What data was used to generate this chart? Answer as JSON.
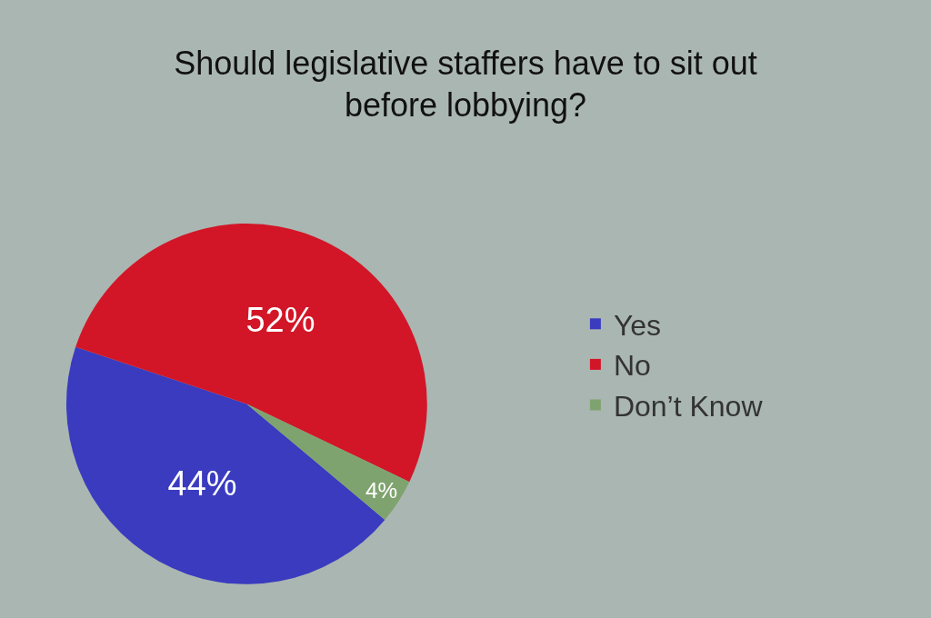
{
  "chart_data": {
    "type": "pie",
    "title": "Should legislative staffers have to sit out before lobbying?",
    "categories": [
      "Yes",
      "No",
      "Don’t Know"
    ],
    "values": [
      44,
      52,
      4
    ],
    "colors": [
      "#3a3bbf",
      "#d21628",
      "#7fa36f"
    ],
    "value_labels": [
      "44%",
      "52%",
      "4%"
    ],
    "legend": "right"
  }
}
